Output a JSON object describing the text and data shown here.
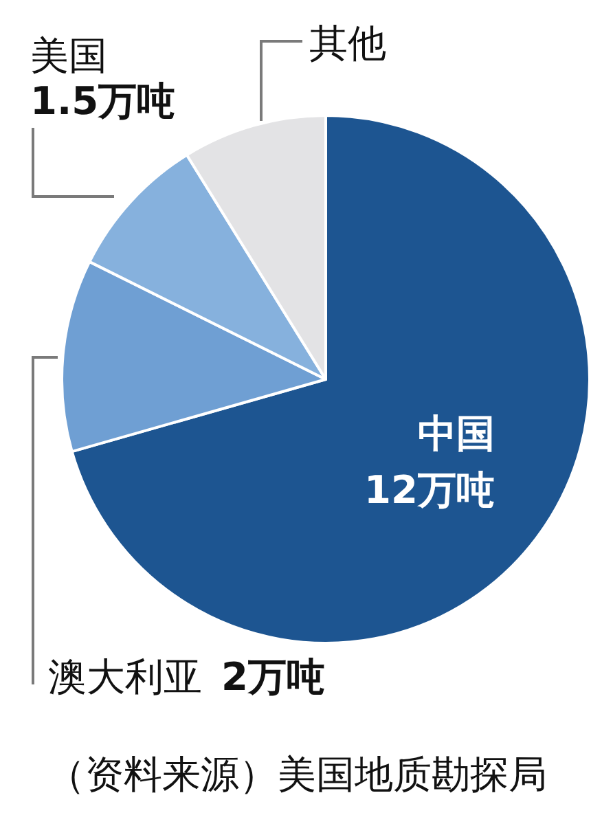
{
  "chart_data": {
    "type": "pie",
    "categories": [
      "中国",
      "澳大利亚",
      "美国",
      "其他"
    ],
    "values": [
      12,
      2,
      1.5,
      1.5
    ],
    "colors": [
      "#1d5591",
      "#6f9fd3",
      "#86b1dd",
      "#e3e3e5"
    ],
    "value_labels": [
      "12万吨",
      "2万吨",
      "1.5万吨",
      null
    ],
    "annotations": [
      "（资料来源）美国地质勘探局"
    ]
  }
}
